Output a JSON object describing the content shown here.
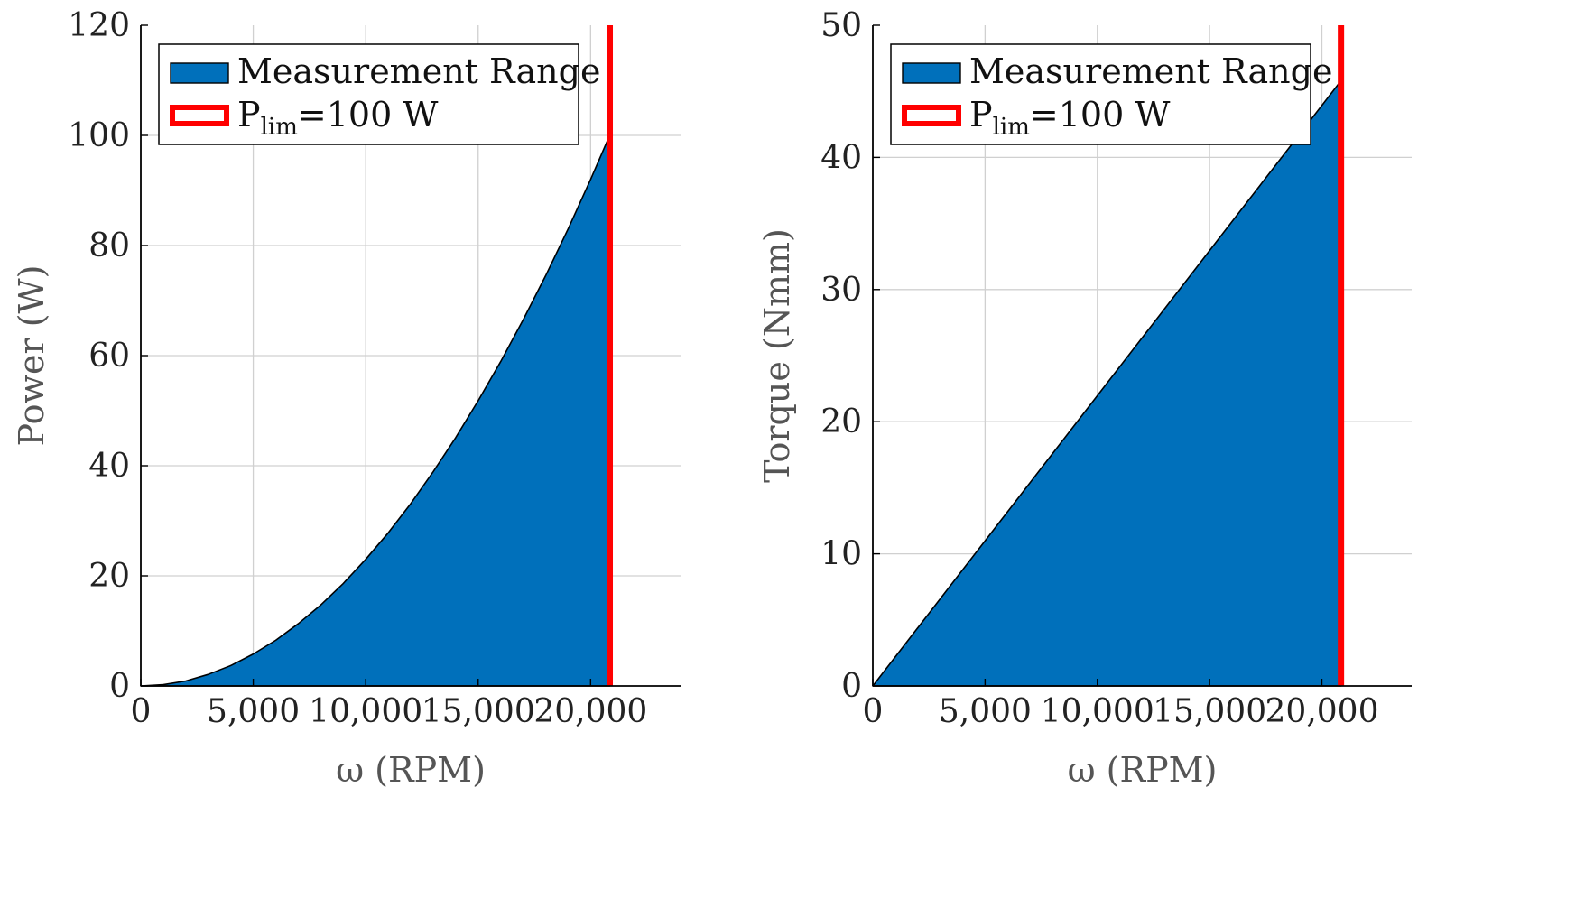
{
  "chart_data": [
    {
      "type": "area",
      "xlabel": "ω (RPM)",
      "ylabel": "Power (W)",
      "xlim": [
        0,
        24000
      ],
      "ylim": [
        0,
        120
      ],
      "xticks": [
        0,
        5000,
        10000,
        15000,
        20000
      ],
      "xtick_labels": [
        "0",
        "5,000",
        "10,000",
        "15,000",
        "20,000"
      ],
      "yticks": [
        0,
        20,
        40,
        60,
        80,
        100,
        120
      ],
      "ytick_labels": [
        "0",
        "20",
        "40",
        "60",
        "80",
        "100",
        "120"
      ],
      "grid": true,
      "legend_position": "top-left",
      "series": [
        {
          "name": "Measurement Range",
          "kind": "area",
          "color": "#0070bb",
          "x": [
            0,
            1000,
            2000,
            3000,
            4000,
            5000,
            6000,
            7000,
            8000,
            9000,
            10000,
            11000,
            12000,
            13000,
            14000,
            15000,
            16000,
            17000,
            18000,
            19000,
            20000,
            20850
          ],
          "y": [
            0,
            0.23,
            0.9,
            2.1,
            3.7,
            5.8,
            8.3,
            11.3,
            14.7,
            18.6,
            23.0,
            27.8,
            33.1,
            38.9,
            45.1,
            51.8,
            58.9,
            66.5,
            74.5,
            83.0,
            92.0,
            100.0
          ]
        },
        {
          "name_main": "P",
          "name_sub": "lim",
          "name_rest": "=100 W",
          "kind": "vline",
          "color": "#ff0000",
          "x": 20850
        }
      ]
    },
    {
      "type": "area",
      "xlabel": "ω (RPM)",
      "ylabel": "Torque (Nmm)",
      "xlim": [
        0,
        24000
      ],
      "ylim": [
        0,
        50
      ],
      "xticks": [
        0,
        5000,
        10000,
        15000,
        20000
      ],
      "xtick_labels": [
        "0",
        "5,000",
        "10,000",
        "15,000",
        "20,000"
      ],
      "yticks": [
        0,
        10,
        20,
        30,
        40,
        50
      ],
      "ytick_labels": [
        "0",
        "10",
        "20",
        "30",
        "40",
        "50"
      ],
      "grid": true,
      "legend_position": "top-left",
      "series": [
        {
          "name": "Measurement Range",
          "kind": "area",
          "color": "#0070bb",
          "x": [
            0,
            20850
          ],
          "y": [
            0,
            45.8
          ]
        },
        {
          "name_main": "P",
          "name_sub": "lim",
          "name_rest": "=100 W",
          "kind": "vline",
          "color": "#ff0000",
          "x": 20850
        }
      ]
    }
  ]
}
